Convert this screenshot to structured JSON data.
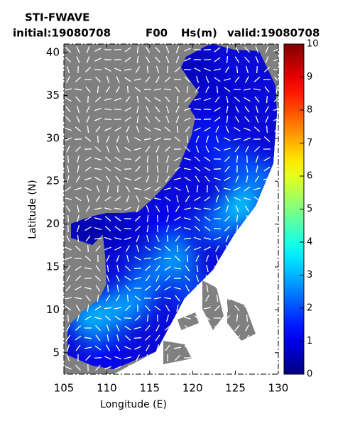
{
  "chart_data": {
    "type": "heatmap",
    "title": "STI-FWAVE",
    "subtitle_parts": [
      "initial:19080708",
      "F00",
      "Hs(m)",
      "valid:19080708"
    ],
    "x_label": "Longitude (E)",
    "y_label": "Latitude (N)",
    "x": [
      125.5,
      123,
      118,
      111,
      108,
      113,
      125,
      122,
      124,
      120,
      112,
      108,
      110,
      115,
      120,
      117,
      128
    ],
    "y": [
      22,
      20,
      16,
      10,
      9,
      11,
      27,
      30,
      35,
      38,
      19,
      19,
      5,
      14,
      12,
      20,
      25
    ],
    "values": [
      3.5,
      2.5,
      3,
      3,
      3.2,
      2.8,
      2,
      1.5,
      0.8,
      0.5,
      0.7,
      0.3,
      1.2,
      2.5,
      2,
      1.2,
      2.5
    ],
    "xlim": [
      105,
      130
    ],
    "ylim": [
      2.5,
      41
    ],
    "xticks": [
      105,
      110,
      115,
      120,
      125,
      130
    ],
    "yticks": [
      5,
      10,
      15,
      20,
      25,
      30,
      35,
      40
    ],
    "clim": [
      0,
      10
    ],
    "cticks": [
      0,
      1,
      2,
      3,
      4,
      5,
      6,
      7,
      8,
      9,
      10
    ],
    "colormap": "jet"
  }
}
